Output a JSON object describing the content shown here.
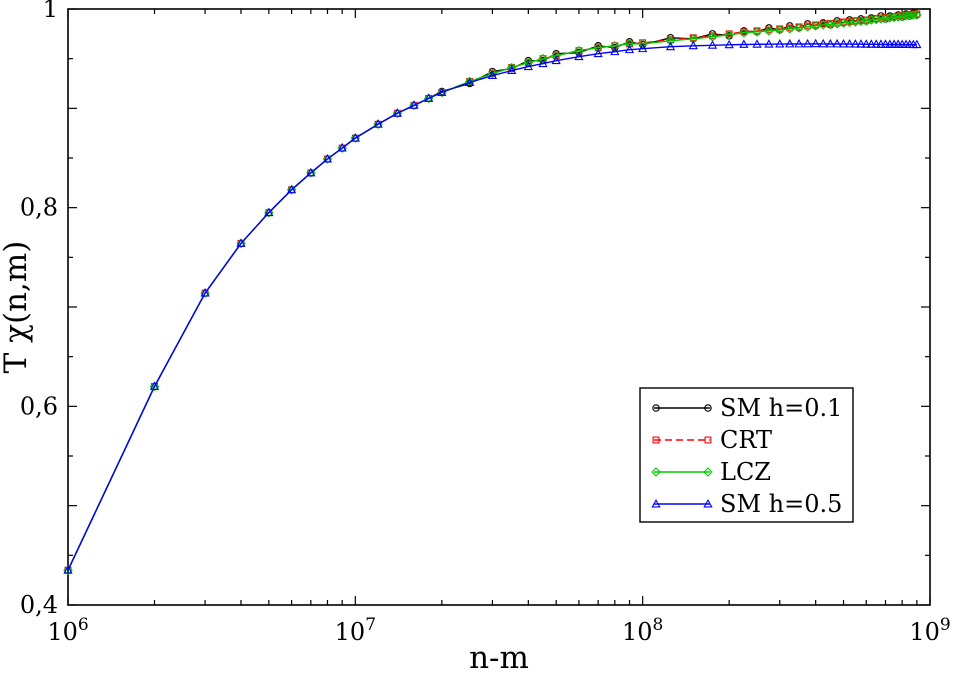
{
  "figure": {
    "background": "#ffffff",
    "frame_color": "#000000"
  },
  "chart_data": {
    "type": "line",
    "title": "",
    "xlabel": "n-m",
    "ylabel": "T χ(n,m)",
    "x_scale": "log",
    "xlim": [
      1000000.0,
      1000000000.0
    ],
    "ylim": [
      0.4,
      1.0
    ],
    "grid": false,
    "legend_position": "inside-right",
    "x_ticks": [
      {
        "value": 1000000.0,
        "base": "10",
        "exp": "6"
      },
      {
        "value": 10000000.0,
        "base": "10",
        "exp": "7"
      },
      {
        "value": 100000000.0,
        "base": "10",
        "exp": "8"
      },
      {
        "value": 1000000000.0,
        "base": "10",
        "exp": "9"
      }
    ],
    "y_tick_labels": [
      {
        "value": 0.4,
        "label": "0,4"
      },
      {
        "value": 0.6,
        "label": "0,6"
      },
      {
        "value": 0.8,
        "label": "0,8"
      },
      {
        "value": 1.0,
        "label": "1"
      }
    ],
    "x": [
      1000000.0,
      2000000.0,
      3000000.0,
      4000000.0,
      5000000.0,
      6000000.0,
      7000000.0,
      8000000.0,
      9000000.0,
      10000000.0,
      12000000.0,
      14000000.0,
      16000000.0,
      18000000.0,
      20000000.0,
      25000000.0,
      30000000.0,
      35000000.0,
      40000000.0,
      45000000.0,
      50000000.0,
      60000000.0,
      70000000.0,
      80000000.0,
      90000000.0,
      100000000.0,
      125000000.0,
      150000000.0,
      175000000.0,
      200000000.0,
      225000000.0,
      250000000.0,
      275000000.0,
      300000000.0,
      325000000.0,
      350000000.0,
      375000000.0,
      400000000.0,
      425000000.0,
      450000000.0,
      475000000.0,
      500000000.0,
      525000000.0,
      550000000.0,
      575000000.0,
      600000000.0,
      625000000.0,
      650000000.0,
      675000000.0,
      700000000.0,
      725000000.0,
      750000000.0,
      775000000.0,
      800000000.0,
      825000000.0,
      850000000.0,
      875000000.0,
      900000000.0
    ],
    "series": [
      {
        "name": "SM h=0.1",
        "color": "#000000",
        "marker": "circle",
        "line": "solid",
        "values": [
          0.435,
          0.62,
          0.714,
          0.764,
          0.795,
          0.818,
          0.835,
          0.849,
          0.86,
          0.87,
          0.884,
          0.895,
          0.903,
          0.91,
          0.917,
          0.925,
          0.937,
          0.94,
          0.948,
          0.948,
          0.955,
          0.956,
          0.963,
          0.961,
          0.967,
          0.964,
          0.971,
          0.97,
          0.975,
          0.973,
          0.978,
          0.977,
          0.981,
          0.979,
          0.983,
          0.981,
          0.985,
          0.983,
          0.986,
          0.984,
          0.988,
          0.986,
          0.989,
          0.988,
          0.99,
          0.988,
          0.991,
          0.99,
          0.993,
          0.99,
          0.993,
          0.992,
          0.994,
          0.992,
          0.995,
          0.993,
          0.996,
          0.994
        ]
      },
      {
        "name": "CRT",
        "color": "#ff0000",
        "marker": "square",
        "line": "dashed",
        "values": [
          0.435,
          0.62,
          0.714,
          0.764,
          0.795,
          0.818,
          0.835,
          0.849,
          0.86,
          0.87,
          0.884,
          0.895,
          0.903,
          0.91,
          0.916,
          0.927,
          0.935,
          0.941,
          0.946,
          0.95,
          0.953,
          0.958,
          0.961,
          0.963,
          0.965,
          0.966,
          0.969,
          0.971,
          0.973,
          0.975,
          0.977,
          0.978,
          0.979,
          0.98,
          0.981,
          0.982,
          0.983,
          0.984,
          0.985,
          0.9855,
          0.986,
          0.987,
          0.9875,
          0.988,
          0.9885,
          0.989,
          0.99,
          0.9905,
          0.991,
          0.9915,
          0.992,
          0.9925,
          0.993,
          0.9935,
          0.994,
          0.9945,
          0.995,
          0.995
        ]
      },
      {
        "name": "LCZ",
        "color": "#00cc00",
        "marker": "diamond",
        "line": "solid",
        "values": [
          0.435,
          0.62,
          0.714,
          0.764,
          0.795,
          0.818,
          0.835,
          0.849,
          0.86,
          0.87,
          0.884,
          0.895,
          0.903,
          0.91,
          0.916,
          0.927,
          0.935,
          0.941,
          0.946,
          0.95,
          0.953,
          0.958,
          0.961,
          0.963,
          0.965,
          0.965,
          0.968,
          0.97,
          0.972,
          0.974,
          0.976,
          0.977,
          0.978,
          0.979,
          0.98,
          0.981,
          0.982,
          0.983,
          0.984,
          0.9845,
          0.985,
          0.986,
          0.9865,
          0.987,
          0.9875,
          0.988,
          0.989,
          0.9895,
          0.99,
          0.9905,
          0.991,
          0.9915,
          0.992,
          0.9925,
          0.993,
          0.9935,
          0.994,
          0.994
        ]
      },
      {
        "name": "SM h=0.5",
        "color": "#0000ff",
        "marker": "triangle-up",
        "line": "solid",
        "values": [
          0.435,
          0.62,
          0.714,
          0.764,
          0.795,
          0.818,
          0.835,
          0.849,
          0.86,
          0.87,
          0.884,
          0.895,
          0.903,
          0.91,
          0.916,
          0.926,
          0.933,
          0.938,
          0.942,
          0.945,
          0.948,
          0.952,
          0.955,
          0.957,
          0.959,
          0.96,
          0.962,
          0.963,
          0.9635,
          0.964,
          0.9643,
          0.9645,
          0.9646,
          0.9647,
          0.9648,
          0.9648,
          0.9649,
          0.965,
          0.9649,
          0.9648,
          0.9648,
          0.9647,
          0.9647,
          0.9646,
          0.9646,
          0.9645,
          0.9645,
          0.9645,
          0.9644,
          0.9644,
          0.9643,
          0.9643,
          0.9643,
          0.9642,
          0.9642,
          0.9642,
          0.9641,
          0.9641
        ]
      }
    ]
  }
}
